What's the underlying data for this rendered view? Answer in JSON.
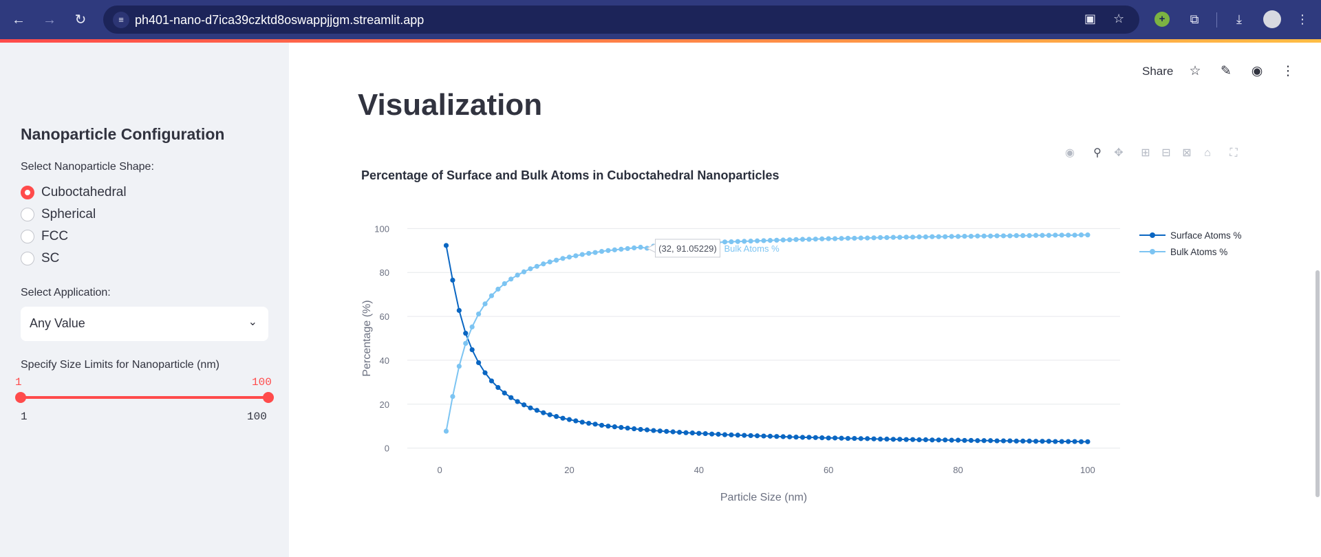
{
  "browser": {
    "url": "ph401-nano-d7ica39czktd8oswappjjgm.streamlit.app"
  },
  "sidebar": {
    "title": "Nanoparticle Configuration",
    "shape_label": "Select Nanoparticle Shape:",
    "shapes": [
      {
        "label": "Cuboctahedral",
        "checked": true
      },
      {
        "label": "Spherical",
        "checked": false
      },
      {
        "label": "FCC",
        "checked": false
      },
      {
        "label": "SC",
        "checked": false
      }
    ],
    "application_label": "Select Application:",
    "application_value": "Any Value",
    "size_label": "Specify Size Limits for Nanoparticle (nm)",
    "slider": {
      "low_value": "1",
      "high_value": "100",
      "min_label": "1",
      "max_label": "100"
    }
  },
  "toolbar": {
    "share_label": "Share"
  },
  "main": {
    "page_title": "Visualization"
  },
  "chart_data": {
    "type": "line",
    "title": "Percentage of Surface and Bulk Atoms in Cuboctahedral Nanoparticles",
    "xlabel": "Particle Size (nm)",
    "ylabel": "Percentage (%)",
    "xlim": [
      -5,
      105
    ],
    "ylim": [
      -2,
      102
    ],
    "x_ticks": [
      "0",
      "20",
      "40",
      "60",
      "80",
      "100"
    ],
    "y_ticks": [
      "0",
      "20",
      "40",
      "60",
      "80",
      "100"
    ],
    "grid": true,
    "legend_position": "top-right",
    "colors": {
      "surface": "#0a66c2",
      "bulk": "#7cc4f2"
    },
    "x": [
      1,
      2,
      3,
      4,
      5,
      6,
      7,
      8,
      9,
      10,
      11,
      12,
      13,
      14,
      15,
      16,
      17,
      18,
      19,
      20,
      21,
      22,
      23,
      24,
      25,
      26,
      27,
      28,
      29,
      30,
      31,
      32,
      33,
      34,
      35,
      36,
      37,
      38,
      39,
      40,
      41,
      42,
      43,
      44,
      45,
      46,
      47,
      48,
      49,
      50,
      51,
      52,
      53,
      54,
      55,
      56,
      57,
      58,
      59,
      60,
      61,
      62,
      63,
      64,
      65,
      66,
      67,
      68,
      69,
      70,
      71,
      72,
      73,
      74,
      75,
      76,
      77,
      78,
      79,
      80,
      81,
      82,
      83,
      84,
      85,
      86,
      87,
      88,
      89,
      90,
      91,
      92,
      93,
      94,
      95,
      96,
      97,
      98,
      99,
      100
    ],
    "series": [
      {
        "name": "Surface Atoms %",
        "values": [
          92.3,
          76.5,
          62.7,
          52.3,
          44.8,
          38.9,
          34.3,
          30.6,
          27.6,
          25.1,
          23.0,
          21.2,
          19.7,
          18.3,
          17.2,
          16.1,
          15.2,
          14.4,
          13.6,
          13.0,
          12.4,
          11.8,
          11.3,
          10.9,
          10.4,
          10.0,
          9.7,
          9.4,
          9.1,
          8.8,
          8.5,
          8.3,
          8.0,
          7.8,
          7.6,
          7.4,
          7.2,
          7.0,
          6.9,
          6.7,
          6.6,
          6.4,
          6.3,
          6.1,
          6.0,
          5.9,
          5.8,
          5.7,
          5.6,
          5.5,
          5.4,
          5.3,
          5.2,
          5.1,
          5.0,
          4.9,
          4.9,
          4.8,
          4.7,
          4.6,
          4.6,
          4.5,
          4.4,
          4.4,
          4.3,
          4.3,
          4.2,
          4.1,
          4.1,
          4.0,
          4.0,
          3.9,
          3.9,
          3.8,
          3.8,
          3.7,
          3.7,
          3.7,
          3.6,
          3.6,
          3.5,
          3.5,
          3.4,
          3.4,
          3.4,
          3.3,
          3.3,
          3.3,
          3.2,
          3.2,
          3.2,
          3.1,
          3.1,
          3.1,
          3.0,
          3.0,
          3.0,
          3.0,
          2.9,
          2.9
        ]
      },
      {
        "name": "Bulk Atoms %",
        "values": [
          7.7,
          23.5,
          37.3,
          47.7,
          55.2,
          61.1,
          65.7,
          69.4,
          72.4,
          74.9,
          77.0,
          78.8,
          80.3,
          81.7,
          82.8,
          83.9,
          84.8,
          85.6,
          86.4,
          87.0,
          87.6,
          88.2,
          88.7,
          89.1,
          89.6,
          90.0,
          90.3,
          90.6,
          90.9,
          91.2,
          91.5,
          91.05,
          92.0,
          92.2,
          92.4,
          92.6,
          92.8,
          93.0,
          93.1,
          93.3,
          93.4,
          93.6,
          93.7,
          93.9,
          94.0,
          94.1,
          94.2,
          94.3,
          94.4,
          94.5,
          94.6,
          94.7,
          94.8,
          94.9,
          95.0,
          95.1,
          95.1,
          95.2,
          95.3,
          95.4,
          95.4,
          95.5,
          95.6,
          95.6,
          95.7,
          95.7,
          95.8,
          95.9,
          95.9,
          96.0,
          96.0,
          96.1,
          96.1,
          96.2,
          96.2,
          96.3,
          96.3,
          96.3,
          96.4,
          96.4,
          96.5,
          96.5,
          96.6,
          96.6,
          96.6,
          96.7,
          96.7,
          96.7,
          96.8,
          96.8,
          96.8,
          96.9,
          96.9,
          96.9,
          97.0,
          97.0,
          97.0,
          97.0,
          97.1,
          97.1
        ]
      }
    ],
    "hover": {
      "x": 32,
      "y": 91.05229,
      "text": "(32, 91.05229)",
      "series_label": "Bulk Atoms %"
    }
  }
}
